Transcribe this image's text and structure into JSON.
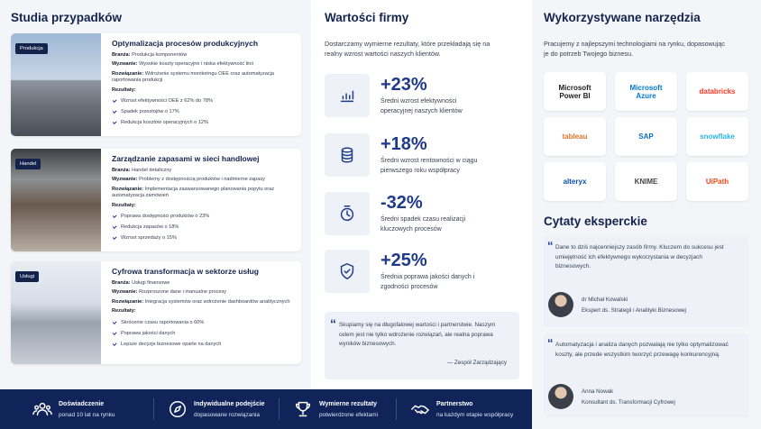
{
  "case_studies": {
    "title": "Studia przypadków",
    "labels": {
      "industry": "Branża:",
      "challenge": "Wyzwanie:",
      "solution": "Rozwiązanie:",
      "results": "Rezultaty:"
    },
    "items": [
      {
        "badge": "Produkcja",
        "title": "Optymalizacja procesów produkcyjnych",
        "industry": "Produkcja komponentów",
        "challenge": "Wysokie koszty operacyjne i niska efektywność linii",
        "solution": "Wdrożenie systemu monitoringu OEE oraz automatyzacja raportowania produkcji",
        "results": [
          "Wzrost efektywności OEE z 62% do 78%",
          "Spadek przestojów o 17%",
          "Redukcja kosztów operacyjnych o 12%"
        ]
      },
      {
        "badge": "Handel",
        "title": "Zarządzanie zapasami w sieci handlowej",
        "industry": "Handel detaliczny",
        "challenge": "Problemy z dostępnością produktów i nadmierne zapasy",
        "solution": "Implementacja zaawansowanego planowania popytu oraz automatyzacja zamówień",
        "results": [
          "Poprawa dostępności produktów o 23%",
          "Redukcja zapasów o 18%",
          "Wzrost sprzedaży o 15%"
        ]
      },
      {
        "badge": "Usługi",
        "title": "Cyfrowa transformacja w sektorze usług",
        "industry": "Usługi finansowe",
        "challenge": "Rozproszone dane i manualne procesy",
        "solution": "Integracja systemów oraz wdrożenie dashboardów analitycznych",
        "results": [
          "Skrócenie czasu raportowania o 60%",
          "Poprawa jakości danych",
          "Lepsze decyzje biznesowe oparte na danych"
        ]
      }
    ]
  },
  "values": {
    "title": "Wartości firmy",
    "intro": "Dostarczamy wymierne rezultaty, które przekładają się na realny wzrost wartości naszych klientów.",
    "stats": [
      {
        "value": "+23%",
        "description": "Średni wzrost efektywności operacyjnej naszych klientów"
      },
      {
        "value": "+18%",
        "description": "Średni wzrost rentowności w ciągu pierwszego roku współpracy"
      },
      {
        "value": "-32%",
        "description": "Średni spadek czasu realizacji kluczowych procesów"
      },
      {
        "value": "+25%",
        "description": "Średnia poprawa jakości danych i zgodności procesów"
      }
    ],
    "quote": {
      "text": "Skupiamy się na długofalowej wartości i partnerstwie. Naszym celem jest nie tylko wdrożenie rozwiązań, ale realna poprawa wyników biznesowych.",
      "author": "— Zespół Zarządzający"
    }
  },
  "tools": {
    "title": "Wykorzystywane narzędzia",
    "intro": "Pracujemy z najlepszymi technologiami na rynku, dopasowując je do potrzeb Twojego biznesu.",
    "logos": [
      "Microsoft Power BI",
      "Microsoft Azure",
      "databricks",
      "tableau",
      "SAP",
      "snowflake",
      "alteryx",
      "KNIME",
      "UiPath"
    ]
  },
  "quotes": {
    "title": "Cytaty eksperckie",
    "items": [
      {
        "text": "Dane to dziś najcenniejszy zasób firmy. Kluczem do sukcesu jest umiejętność ich efektywnego wykorzystania w decyzjach biznesowych.",
        "name": "dr Michał Kowalski",
        "role": "Ekspert ds. Strategii i Analityki Biznesowej"
      },
      {
        "text": "Automatyzacja i analiza danych pozwalają nie tylko optymalizować koszty, ale przede wszystkim tworzyć przewagę konkurencyjną.",
        "name": "Anna Nowak",
        "role": "Konsultant ds. Transformacji Cyfrowej"
      }
    ]
  },
  "footer": [
    {
      "title": "Doświadczenie",
      "subtitle": "ponad 10 lat na rynku"
    },
    {
      "title": "Indywidualne podejście",
      "subtitle": "dopasowane rozwiązania"
    },
    {
      "title": "Wymierne rezultaty",
      "subtitle": "potwierdzone efektami"
    },
    {
      "title": "Partnerstwo",
      "subtitle": "na każdym etapie współpracy"
    }
  ]
}
